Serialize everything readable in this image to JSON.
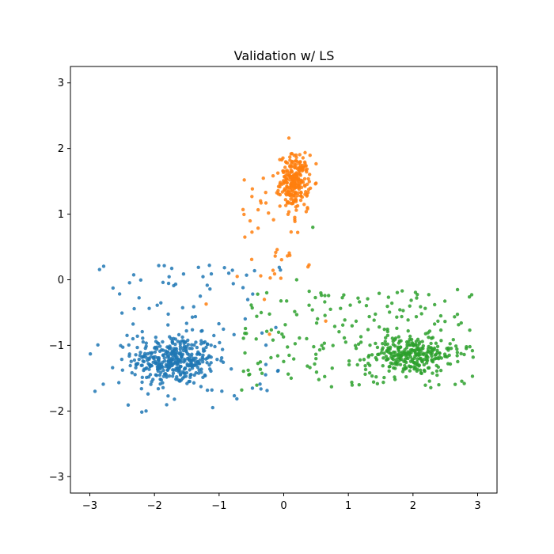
{
  "chart_data": {
    "type": "scatter",
    "title": "Validation w/ LS",
    "xlabel": "",
    "ylabel": "",
    "xlim": [
      -3.3,
      3.3
    ],
    "ylim": [
      -3.25,
      3.25
    ],
    "xticks": [
      -3,
      -2,
      -1,
      0,
      1,
      2,
      3
    ],
    "yticks": [
      -3,
      -2,
      -1,
      0,
      1,
      2,
      3
    ],
    "grid": false,
    "legend": "none",
    "series": [
      {
        "color": "#1f77b4",
        "cluster": {
          "n": 360,
          "cx": -1.7,
          "cy": -1.22,
          "sx": 0.32,
          "sy": 0.19
        },
        "scatter": {
          "n": 100,
          "x": [
            -2.9,
            -0.05
          ],
          "y": [
            -1.95,
            0.22
          ]
        },
        "points": [
          [
            -2.92,
            -1.7
          ],
          [
            -2.13,
            -2.0
          ],
          [
            -1.15,
            0.22
          ],
          [
            -0.85,
            0.1
          ],
          [
            -0.63,
            -0.12
          ]
        ]
      },
      {
        "color": "#ff7f0e",
        "cluster": {
          "n": 240,
          "cx": 0.17,
          "cy": 1.5,
          "sx": 0.11,
          "sy": 0.2
        },
        "scatter": {
          "n": 40,
          "x": [
            -0.65,
            0.45
          ],
          "y": [
            0.0,
            1.6
          ]
        },
        "points": [
          [
            0.08,
            2.16
          ],
          [
            -0.3,
            -0.3
          ],
          [
            -1.2,
            -0.37
          ],
          [
            0.65,
            -0.63
          ],
          [
            -0.22,
            -0.83
          ],
          [
            -0.72,
            0.05
          ]
        ]
      },
      {
        "color": "#2ca02c",
        "cluster": {
          "n": 260,
          "cx": 1.95,
          "cy": -1.15,
          "sx": 0.33,
          "sy": 0.15
        },
        "scatter": {
          "n": 180,
          "x": [
            -0.65,
            2.95
          ],
          "y": [
            -1.65,
            -0.15
          ]
        },
        "points": [
          [
            2.92,
            -1.47
          ],
          [
            2.93,
            -1.18
          ],
          [
            2.88,
            -1.02
          ],
          [
            2.43,
            -0.55
          ],
          [
            1.95,
            -0.4
          ],
          [
            1.15,
            -0.28
          ],
          [
            0.45,
            0.8
          ],
          [
            -0.65,
            -1.68
          ],
          [
            0.2,
            0.0
          ]
        ]
      }
    ]
  }
}
